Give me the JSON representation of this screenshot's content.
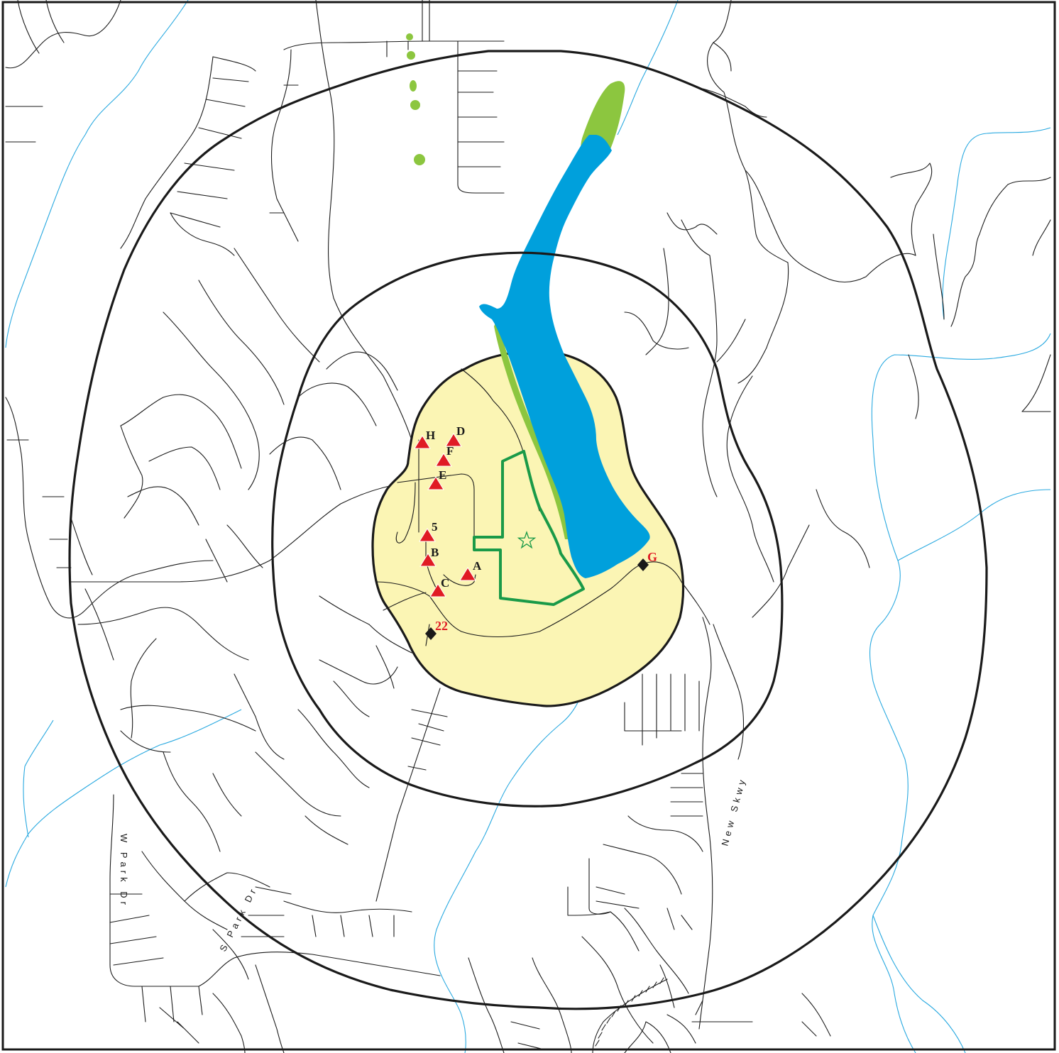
{
  "colors": {
    "frame": "#1a1a1a",
    "road": "#1a1a1a",
    "stream": "#29a9e0",
    "lake": "#00a0dc",
    "wetland": "#8cc63f",
    "zone_fill": "#fbf5b4",
    "site_boundary": "#1a9a48",
    "triangle": "#e01b24",
    "diamond": "#1a1a1a",
    "diamond_label": "#e01b24"
  },
  "icons": {
    "sample_point": "red-triangle",
    "monitor_station": "black-diamond",
    "site_center": "star-icon"
  },
  "triangles": [
    {
      "id": "H",
      "label": "H"
    },
    {
      "id": "D",
      "label": "D"
    },
    {
      "id": "F",
      "label": "F"
    },
    {
      "id": "E",
      "label": "E"
    },
    {
      "id": "5",
      "label": "5"
    },
    {
      "id": "B",
      "label": "B"
    },
    {
      "id": "A",
      "label": "A"
    },
    {
      "id": "C",
      "label": "C"
    }
  ],
  "stations": [
    {
      "id": "G",
      "label": "G"
    },
    {
      "id": "22",
      "label": "22"
    }
  ],
  "streets": {
    "w_park": "W Park Dr",
    "s_park": "S Park Dr",
    "new_skwy": "New Skwy"
  }
}
